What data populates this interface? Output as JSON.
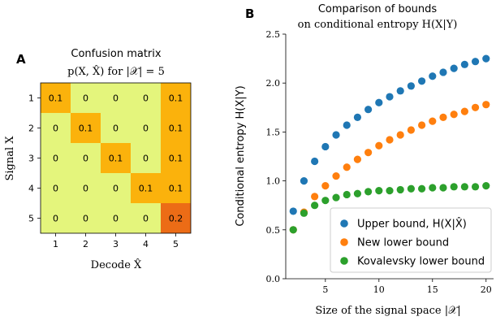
{
  "chart_data": [
    {
      "type": "heatmap",
      "panel_label": "A",
      "title_line1": "Confusion matrix",
      "title_line2": "p(X, X̂) for |𝒳| = 5",
      "xlabel": "Decode X̂",
      "ylabel": "Signal X",
      "x_categories": [
        "1",
        "2",
        "3",
        "4",
        "5"
      ],
      "y_categories": [
        "1",
        "2",
        "3",
        "4",
        "5"
      ],
      "cells": [
        [
          "0.1",
          "0",
          "0",
          "0",
          "0.1"
        ],
        [
          "0",
          "0.1",
          "0",
          "0",
          "0.1"
        ],
        [
          "0",
          "0",
          "0.1",
          "0",
          "0.1"
        ],
        [
          "0",
          "0",
          "0",
          "0.1",
          "0.1"
        ],
        [
          "0",
          "0",
          "0",
          "0",
          "0.2"
        ]
      ],
      "colors": {
        "zero": "#e4f57c",
        "low": "#fbb20c",
        "high": "#ec6c16"
      }
    },
    {
      "type": "scatter",
      "panel_label": "B",
      "title_line1": "Comparison of bounds",
      "title_line2": "on conditional entropy H(X|Y)",
      "xlabel": "Size of the signal space |𝒳|",
      "ylabel": "Conditional entropy H(X|Y)",
      "xlim": [
        1.3,
        20.7
      ],
      "ylim": [
        0.0,
        2.5
      ],
      "x_ticks": [
        5,
        10,
        15,
        20
      ],
      "y_ticks": [
        0.0,
        0.5,
        1.0,
        1.5,
        2.0,
        2.5
      ],
      "y_tick_labels": [
        "0.0",
        "0.5",
        "1.0",
        "1.5",
        "2.0",
        "2.5"
      ],
      "legend_position": "bottom-right",
      "series": [
        {
          "name": "Upper bound, H(X|X̂)",
          "color": "#1f77b4",
          "x": [
            2,
            3,
            4,
            5,
            6,
            7,
            8,
            9,
            10,
            11,
            12,
            13,
            14,
            15,
            16,
            17,
            18,
            19,
            20
          ],
          "y": [
            0.69,
            1.0,
            1.2,
            1.35,
            1.47,
            1.57,
            1.65,
            1.73,
            1.8,
            1.86,
            1.92,
            1.97,
            2.02,
            2.07,
            2.11,
            2.15,
            2.19,
            2.22,
            2.25
          ]
        },
        {
          "name": "New lower bound",
          "color": "#ff7f0e",
          "x": [
            2,
            3,
            4,
            5,
            6,
            7,
            8,
            9,
            10,
            11,
            12,
            13,
            14,
            15,
            16,
            17,
            18,
            19,
            20
          ],
          "y": [
            0.5,
            0.68,
            0.84,
            0.95,
            1.05,
            1.14,
            1.22,
            1.29,
            1.36,
            1.42,
            1.47,
            1.52,
            1.57,
            1.61,
            1.65,
            1.68,
            1.71,
            1.75,
            1.78
          ]
        },
        {
          "name": "Kovalevsky lower bound",
          "color": "#2ca02c",
          "x": [
            2,
            3,
            4,
            5,
            6,
            7,
            8,
            9,
            10,
            11,
            12,
            13,
            14,
            15,
            16,
            17,
            18,
            19,
            20
          ],
          "y": [
            0.5,
            0.67,
            0.75,
            0.8,
            0.83,
            0.86,
            0.87,
            0.89,
            0.9,
            0.9,
            0.91,
            0.92,
            0.92,
            0.93,
            0.93,
            0.94,
            0.94,
            0.94,
            0.95
          ]
        }
      ]
    }
  ]
}
